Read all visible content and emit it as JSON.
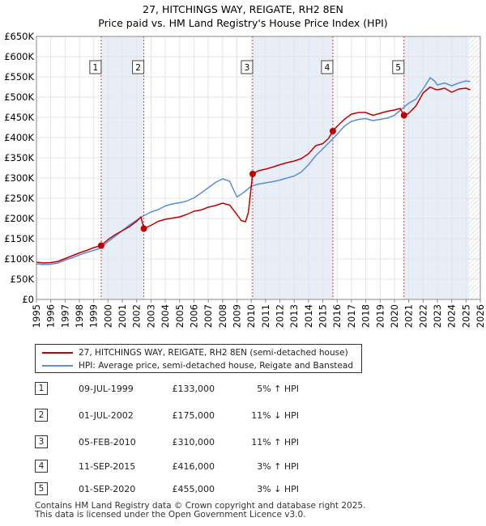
{
  "header": {
    "title": "27, HITCHINGS WAY, REIGATE, RH2 8EN",
    "subtitle": "Price paid vs. HM Land Registry's House Price Index (HPI)"
  },
  "colors": {
    "property_line": "#c00000",
    "hpi_line": "#5b8fd0",
    "sale_band": "#e8eef8",
    "marker_line": "#d04040",
    "future_hatch": "#bbbbbb"
  },
  "chart_data": {
    "type": "line",
    "x_unit": "year",
    "xlim": [
      1995.0,
      2026.0
    ],
    "ylim": [
      0,
      650000
    ],
    "yticks": [
      0,
      50000,
      100000,
      150000,
      200000,
      250000,
      300000,
      350000,
      400000,
      450000,
      500000,
      550000,
      600000,
      650000
    ],
    "ytick_labels": [
      "£0",
      "£50K",
      "£100K",
      "£150K",
      "£200K",
      "£250K",
      "£300K",
      "£350K",
      "£400K",
      "£450K",
      "£500K",
      "£550K",
      "£600K",
      "£650K"
    ],
    "xticks": [
      1995,
      1996,
      1997,
      1998,
      1999,
      2000,
      2001,
      2002,
      2003,
      2004,
      2005,
      2006,
      2007,
      2008,
      2009,
      2010,
      2011,
      2012,
      2013,
      2014,
      2015,
      2016,
      2017,
      2018,
      2019,
      2020,
      2021,
      2022,
      2023,
      2024,
      2025,
      2026
    ],
    "xtick_labels": [
      "1995",
      "1996",
      "1997",
      "1998",
      "1999",
      "2000",
      "2001",
      "2002",
      "2003",
      "2004",
      "2005",
      "2006",
      "2007",
      "2008",
      "2009",
      "2010",
      "2011",
      "2012",
      "2013",
      "2014",
      "2015",
      "2016",
      "2017",
      "2018",
      "2019",
      "2020",
      "2021",
      "2022",
      "2023",
      "2024",
      "2025",
      "2026"
    ],
    "grid": true,
    "forecast_start": 2025.2,
    "series": [
      {
        "name": "27, HITCHINGS WAY, REIGATE, RH2 8EN (semi-detached house)",
        "color": "#c00000",
        "x": [
          1995.0,
          1995.5,
          1996.0,
          1996.5,
          1997.0,
          1997.5,
          1998.0,
          1998.5,
          1999.0,
          1999.52,
          2000.0,
          2000.5,
          2001.0,
          2001.5,
          2002.0,
          2002.3,
          2002.5,
          2003.0,
          2003.5,
          2004.0,
          2004.5,
          2005.0,
          2005.5,
          2006.0,
          2006.5,
          2007.0,
          2007.5,
          2008.0,
          2008.5,
          2009.0,
          2009.3,
          2009.6,
          2009.8,
          2010.1,
          2010.5,
          2011.0,
          2011.5,
          2012.0,
          2012.5,
          2013.0,
          2013.5,
          2014.0,
          2014.5,
          2015.0,
          2015.4,
          2015.7,
          2016.0,
          2016.5,
          2017.0,
          2017.5,
          2018.0,
          2018.5,
          2019.0,
          2019.5,
          2020.0,
          2020.4,
          2020.67,
          2021.0,
          2021.5,
          2022.0,
          2022.5,
          2022.8,
          2023.0,
          2023.5,
          2024.0,
          2024.5,
          2025.0,
          2025.3
        ],
        "y": [
          92000,
          90000,
          91000,
          94000,
          101000,
          108000,
          115000,
          121000,
          128000,
          133000,
          148000,
          160000,
          170000,
          180000,
          193000,
          204000,
          175000,
          183000,
          193000,
          198000,
          201000,
          204000,
          210000,
          218000,
          221000,
          228000,
          232000,
          238000,
          233000,
          210000,
          195000,
          192000,
          215000,
          310000,
          318000,
          322000,
          327000,
          333000,
          338000,
          342000,
          348000,
          360000,
          380000,
          385000,
          398000,
          416000,
          428000,
          445000,
          458000,
          462000,
          462000,
          455000,
          460000,
          465000,
          468000,
          472000,
          455000,
          460000,
          478000,
          510000,
          525000,
          520000,
          518000,
          522000,
          512000,
          520000,
          522000,
          518000
        ]
      },
      {
        "name": "HPI: Average price, semi-detached house, Reigate and Banstead",
        "color": "#5b8fd0",
        "x": [
          1995.0,
          1995.5,
          1996.0,
          1996.5,
          1997.0,
          1997.5,
          1998.0,
          1998.5,
          1999.0,
          1999.5,
          2000.0,
          2000.5,
          2001.0,
          2001.5,
          2002.0,
          2002.5,
          2003.0,
          2003.5,
          2004.0,
          2004.5,
          2005.0,
          2005.5,
          2006.0,
          2006.5,
          2007.0,
          2007.5,
          2008.0,
          2008.5,
          2009.0,
          2009.5,
          2010.0,
          2010.5,
          2011.0,
          2011.5,
          2012.0,
          2012.5,
          2013.0,
          2013.5,
          2014.0,
          2014.5,
          2015.0,
          2015.5,
          2016.0,
          2016.5,
          2017.0,
          2017.5,
          2018.0,
          2018.5,
          2019.0,
          2019.5,
          2020.0,
          2020.5,
          2021.0,
          2021.5,
          2022.0,
          2022.5,
          2022.8,
          2023.0,
          2023.5,
          2024.0,
          2024.5,
          2025.0,
          2025.3
        ],
        "y": [
          88000,
          86000,
          87000,
          90000,
          97000,
          103000,
          110000,
          116000,
          121000,
          127000,
          143000,
          156000,
          170000,
          184000,
          196000,
          207000,
          216000,
          222000,
          231000,
          236000,
          239000,
          243000,
          251000,
          263000,
          276000,
          289000,
          298000,
          292000,
          253000,
          265000,
          280000,
          285000,
          288000,
          291000,
          295000,
          300000,
          305000,
          315000,
          333000,
          355000,
          372000,
          390000,
          408000,
          428000,
          440000,
          445000,
          447000,
          442000,
          445000,
          448000,
          455000,
          470000,
          485000,
          495000,
          520000,
          548000,
          540000,
          530000,
          535000,
          528000,
          535000,
          540000,
          538000
        ]
      }
    ],
    "sales": [
      {
        "label": "1",
        "x": 1999.52,
        "y": 133000
      },
      {
        "label": "2",
        "x": 2002.5,
        "y": 175000
      },
      {
        "label": "3",
        "x": 2010.1,
        "y": 310000
      },
      {
        "label": "4",
        "x": 2015.7,
        "y": 416000
      },
      {
        "label": "5",
        "x": 2020.67,
        "y": 455000
      }
    ],
    "shaded_bands": [
      [
        1999.52,
        2002.5
      ],
      [
        2010.1,
        2015.7
      ],
      [
        2020.67,
        2025.2
      ]
    ]
  },
  "legend": {
    "property": "27, HITCHINGS WAY, REIGATE, RH2 8EN (semi-detached house)",
    "hpi": "HPI: Average price, semi-detached house, Reigate and Banstead"
  },
  "sales_table": [
    {
      "num": "1",
      "date": "09-JUL-1999",
      "price": "£133,000",
      "hpi": "5% ↑ HPI"
    },
    {
      "num": "2",
      "date": "01-JUL-2002",
      "price": "£175,000",
      "hpi": "11% ↓ HPI"
    },
    {
      "num": "3",
      "date": "05-FEB-2010",
      "price": "£310,000",
      "hpi": "11% ↑ HPI"
    },
    {
      "num": "4",
      "date": "11-SEP-2015",
      "price": "£416,000",
      "hpi": "3% ↑ HPI"
    },
    {
      "num": "5",
      "date": "01-SEP-2020",
      "price": "£455,000",
      "hpi": "3% ↓ HPI"
    }
  ],
  "footer": {
    "line1": "Contains HM Land Registry data © Crown copyright and database right 2025.",
    "line2": "This data is licensed under the Open Government Licence v3.0."
  }
}
